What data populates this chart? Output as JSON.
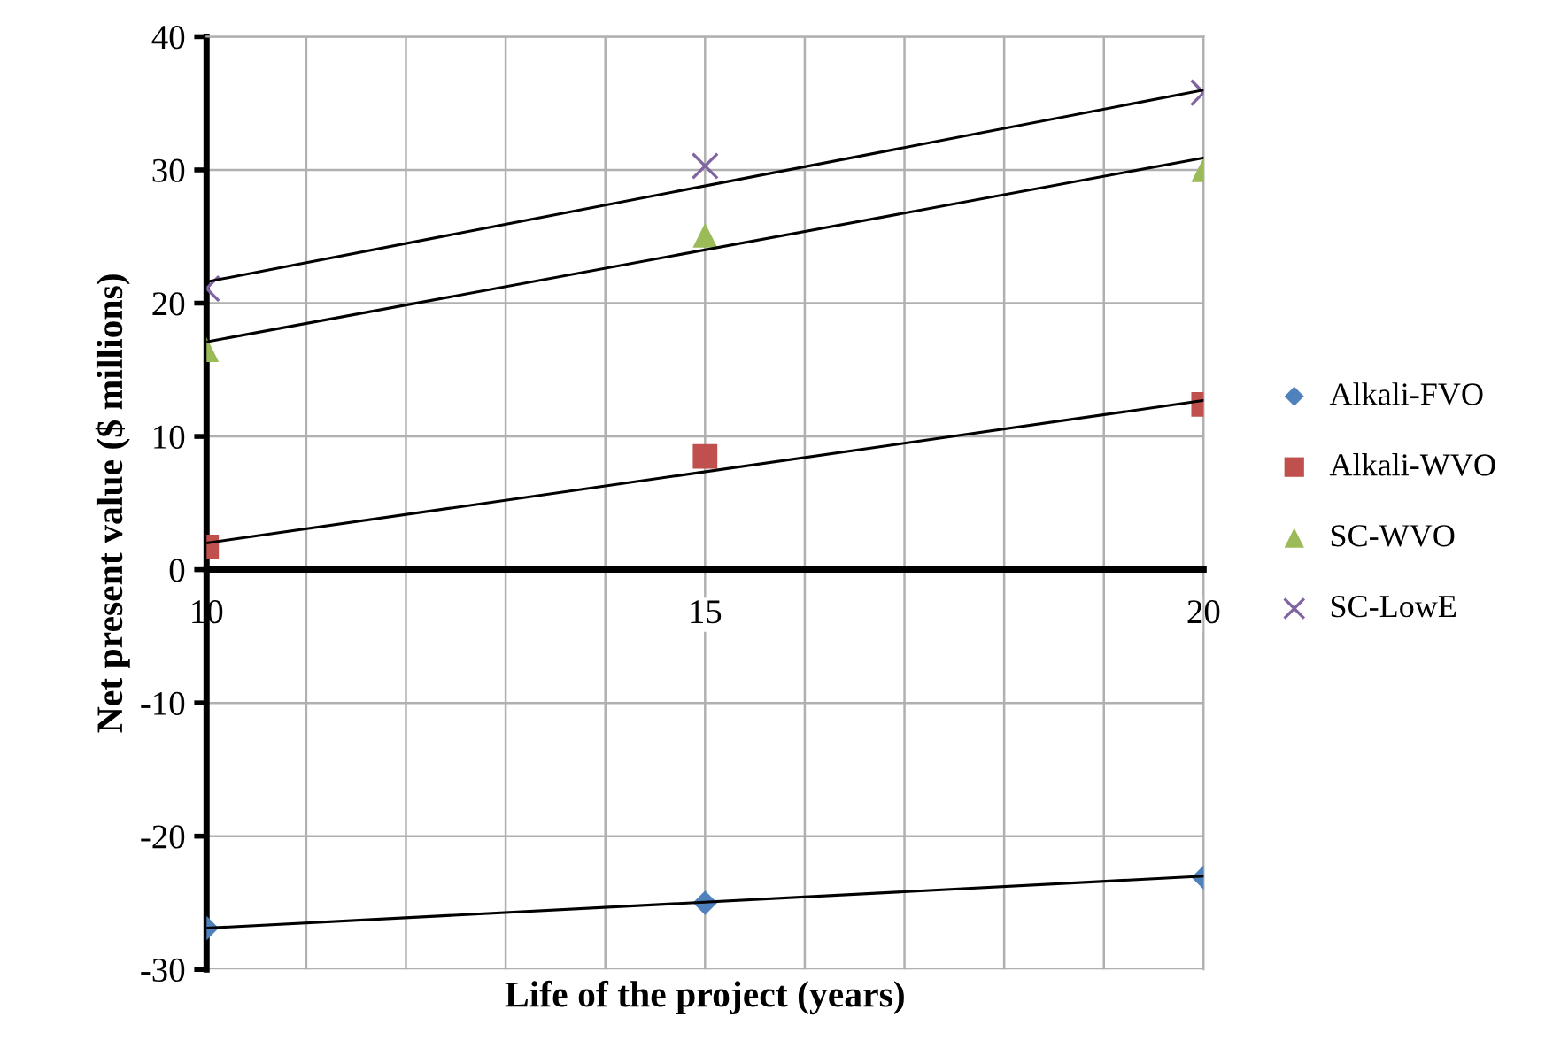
{
  "chart_data": {
    "type": "scatter",
    "xlabel": "Life of the project (years)",
    "ylabel": "Net present value ($ millions)",
    "xlim": [
      10,
      20
    ],
    "xticks": [
      10,
      {
        "value": 11,
        "label": null
      },
      {
        "value": 12,
        "label": null
      },
      {
        "value": 13,
        "label": null
      },
      {
        "value": 14,
        "label": null
      },
      15,
      {
        "value": 16,
        "label": null
      },
      {
        "value": 17,
        "label": null
      },
      {
        "value": 18,
        "label": null
      },
      {
        "value": 19,
        "label": null
      },
      20
    ],
    "ylim": [
      -30,
      40
    ],
    "yticks": [
      -30,
      -20,
      -10,
      0,
      10,
      20,
      30,
      40
    ],
    "grid": true,
    "legend": "right",
    "series": [
      {
        "name": "Alkali-FVO",
        "marker": "diamond",
        "color": "#4f81bd",
        "x": [
          10,
          15,
          20
        ],
        "values": [
          -26.9,
          -25.0,
          -23.1
        ]
      },
      {
        "name": "Alkali-WVO",
        "marker": "square",
        "color": "#c0504d",
        "x": [
          10,
          15,
          20
        ],
        "values": [
          1.7,
          8.5,
          12.4
        ]
      },
      {
        "name": "SC-WVO",
        "marker": "triangle",
        "color": "#9bbb59",
        "x": [
          10,
          15,
          20
        ],
        "values": [
          16.5,
          25.1,
          30.0
        ]
      },
      {
        "name": "SC-LowE",
        "marker": "cross",
        "color": "#8064a2",
        "x": [
          10,
          15,
          20
        ],
        "values": [
          21.1,
          30.3,
          35.8
        ]
      },
      {
        "type": "line",
        "color": "#000000",
        "x": [
          10,
          20
        ],
        "values": [
          -26.9,
          -23.0
        ]
      },
      {
        "type": "line",
        "color": "#000000",
        "x": [
          10,
          20
        ],
        "values": [
          2.0,
          12.7
        ]
      },
      {
        "type": "line",
        "color": "#000000",
        "x": [
          10,
          20
        ],
        "values": [
          17.1,
          30.9
        ]
      },
      {
        "type": "line",
        "color": "#000000",
        "x": [
          10,
          20
        ],
        "values": [
          21.6,
          36.0
        ]
      }
    ]
  }
}
